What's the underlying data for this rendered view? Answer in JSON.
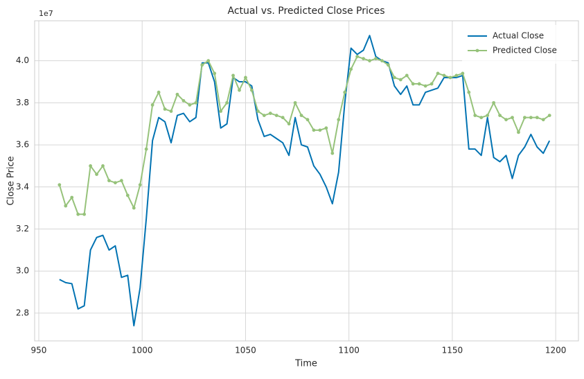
{
  "chart_data": {
    "type": "line",
    "title": "Actual vs. Predicted Close Prices",
    "xlabel": "Time",
    "ylabel": "Close Price",
    "y_offset_label": "1e7",
    "x": [
      960,
      963,
      966,
      969,
      972,
      975,
      978,
      981,
      984,
      987,
      990,
      993,
      996,
      999,
      1002,
      1005,
      1008,
      1011,
      1014,
      1017,
      1020,
      1023,
      1026,
      1029,
      1032,
      1035,
      1038,
      1041,
      1044,
      1047,
      1050,
      1053,
      1056,
      1059,
      1062,
      1065,
      1068,
      1071,
      1074,
      1077,
      1080,
      1083,
      1086,
      1089,
      1092,
      1095,
      1098,
      1101,
      1104,
      1107,
      1110,
      1113,
      1116,
      1119,
      1122,
      1125,
      1128,
      1131,
      1134,
      1137,
      1140,
      1143,
      1146,
      1149,
      1152,
      1155,
      1158,
      1161,
      1164,
      1167,
      1170,
      1173,
      1176,
      1179,
      1182,
      1185,
      1188,
      1191,
      1194,
      1197
    ],
    "series": [
      {
        "name": "Actual Close",
        "color": "#0072b2",
        "marker": false,
        "values": [
          2.96,
          2.945,
          2.94,
          2.82,
          2.835,
          3.1,
          3.16,
          3.17,
          3.1,
          3.12,
          2.97,
          2.98,
          2.74,
          2.92,
          3.25,
          3.62,
          3.73,
          3.71,
          3.61,
          3.74,
          3.75,
          3.71,
          3.73,
          3.99,
          3.99,
          3.9,
          3.68,
          3.7,
          3.92,
          3.9,
          3.9,
          3.88,
          3.72,
          3.64,
          3.65,
          3.63,
          3.61,
          3.55,
          3.73,
          3.6,
          3.59,
          3.5,
          3.46,
          3.4,
          3.32,
          3.47,
          3.8,
          4.06,
          4.03,
          4.05,
          4.12,
          4.02,
          4.0,
          3.99,
          3.88,
          3.84,
          3.88,
          3.79,
          3.79,
          3.85,
          3.86,
          3.87,
          3.92,
          3.92,
          3.92,
          3.93,
          3.58,
          3.58,
          3.55,
          3.73,
          3.54,
          3.52,
          3.55,
          3.44,
          3.55,
          3.59,
          3.65,
          3.59,
          3.56,
          3.62
        ]
      },
      {
        "name": "Predicted Close",
        "color": "#96c27a",
        "marker": true,
        "values": [
          3.41,
          3.31,
          3.35,
          3.27,
          3.27,
          3.5,
          3.46,
          3.5,
          3.43,
          3.42,
          3.43,
          3.36,
          3.3,
          3.41,
          3.58,
          3.79,
          3.85,
          3.77,
          3.76,
          3.84,
          3.81,
          3.79,
          3.8,
          3.98,
          4.0,
          3.94,
          3.76,
          3.8,
          3.93,
          3.86,
          3.92,
          3.86,
          3.76,
          3.74,
          3.75,
          3.74,
          3.73,
          3.7,
          3.8,
          3.74,
          3.72,
          3.67,
          3.67,
          3.68,
          3.56,
          3.72,
          3.85,
          3.96,
          4.02,
          4.01,
          4.0,
          4.01,
          4.0,
          3.98,
          3.92,
          3.91,
          3.93,
          3.89,
          3.89,
          3.88,
          3.89,
          3.94,
          3.93,
          3.92,
          3.93,
          3.94,
          3.85,
          3.74,
          3.73,
          3.74,
          3.8,
          3.74,
          3.72,
          3.73,
          3.66,
          3.73,
          3.73,
          3.73,
          3.72,
          3.74
        ]
      }
    ],
    "xlim": [
      948,
      1211
    ],
    "xticks": [
      950,
      1000,
      1050,
      1100,
      1150,
      1200
    ],
    "ylim": [
      2.668,
      4.19
    ],
    "yticks": [
      2.8,
      {
        "value": 3,
        "label": "3.0"
      },
      3.2,
      3.4,
      3.6,
      3.8,
      {
        "value": 4,
        "label": "4.0"
      }
    ],
    "grid": true,
    "legend": "upper right"
  }
}
